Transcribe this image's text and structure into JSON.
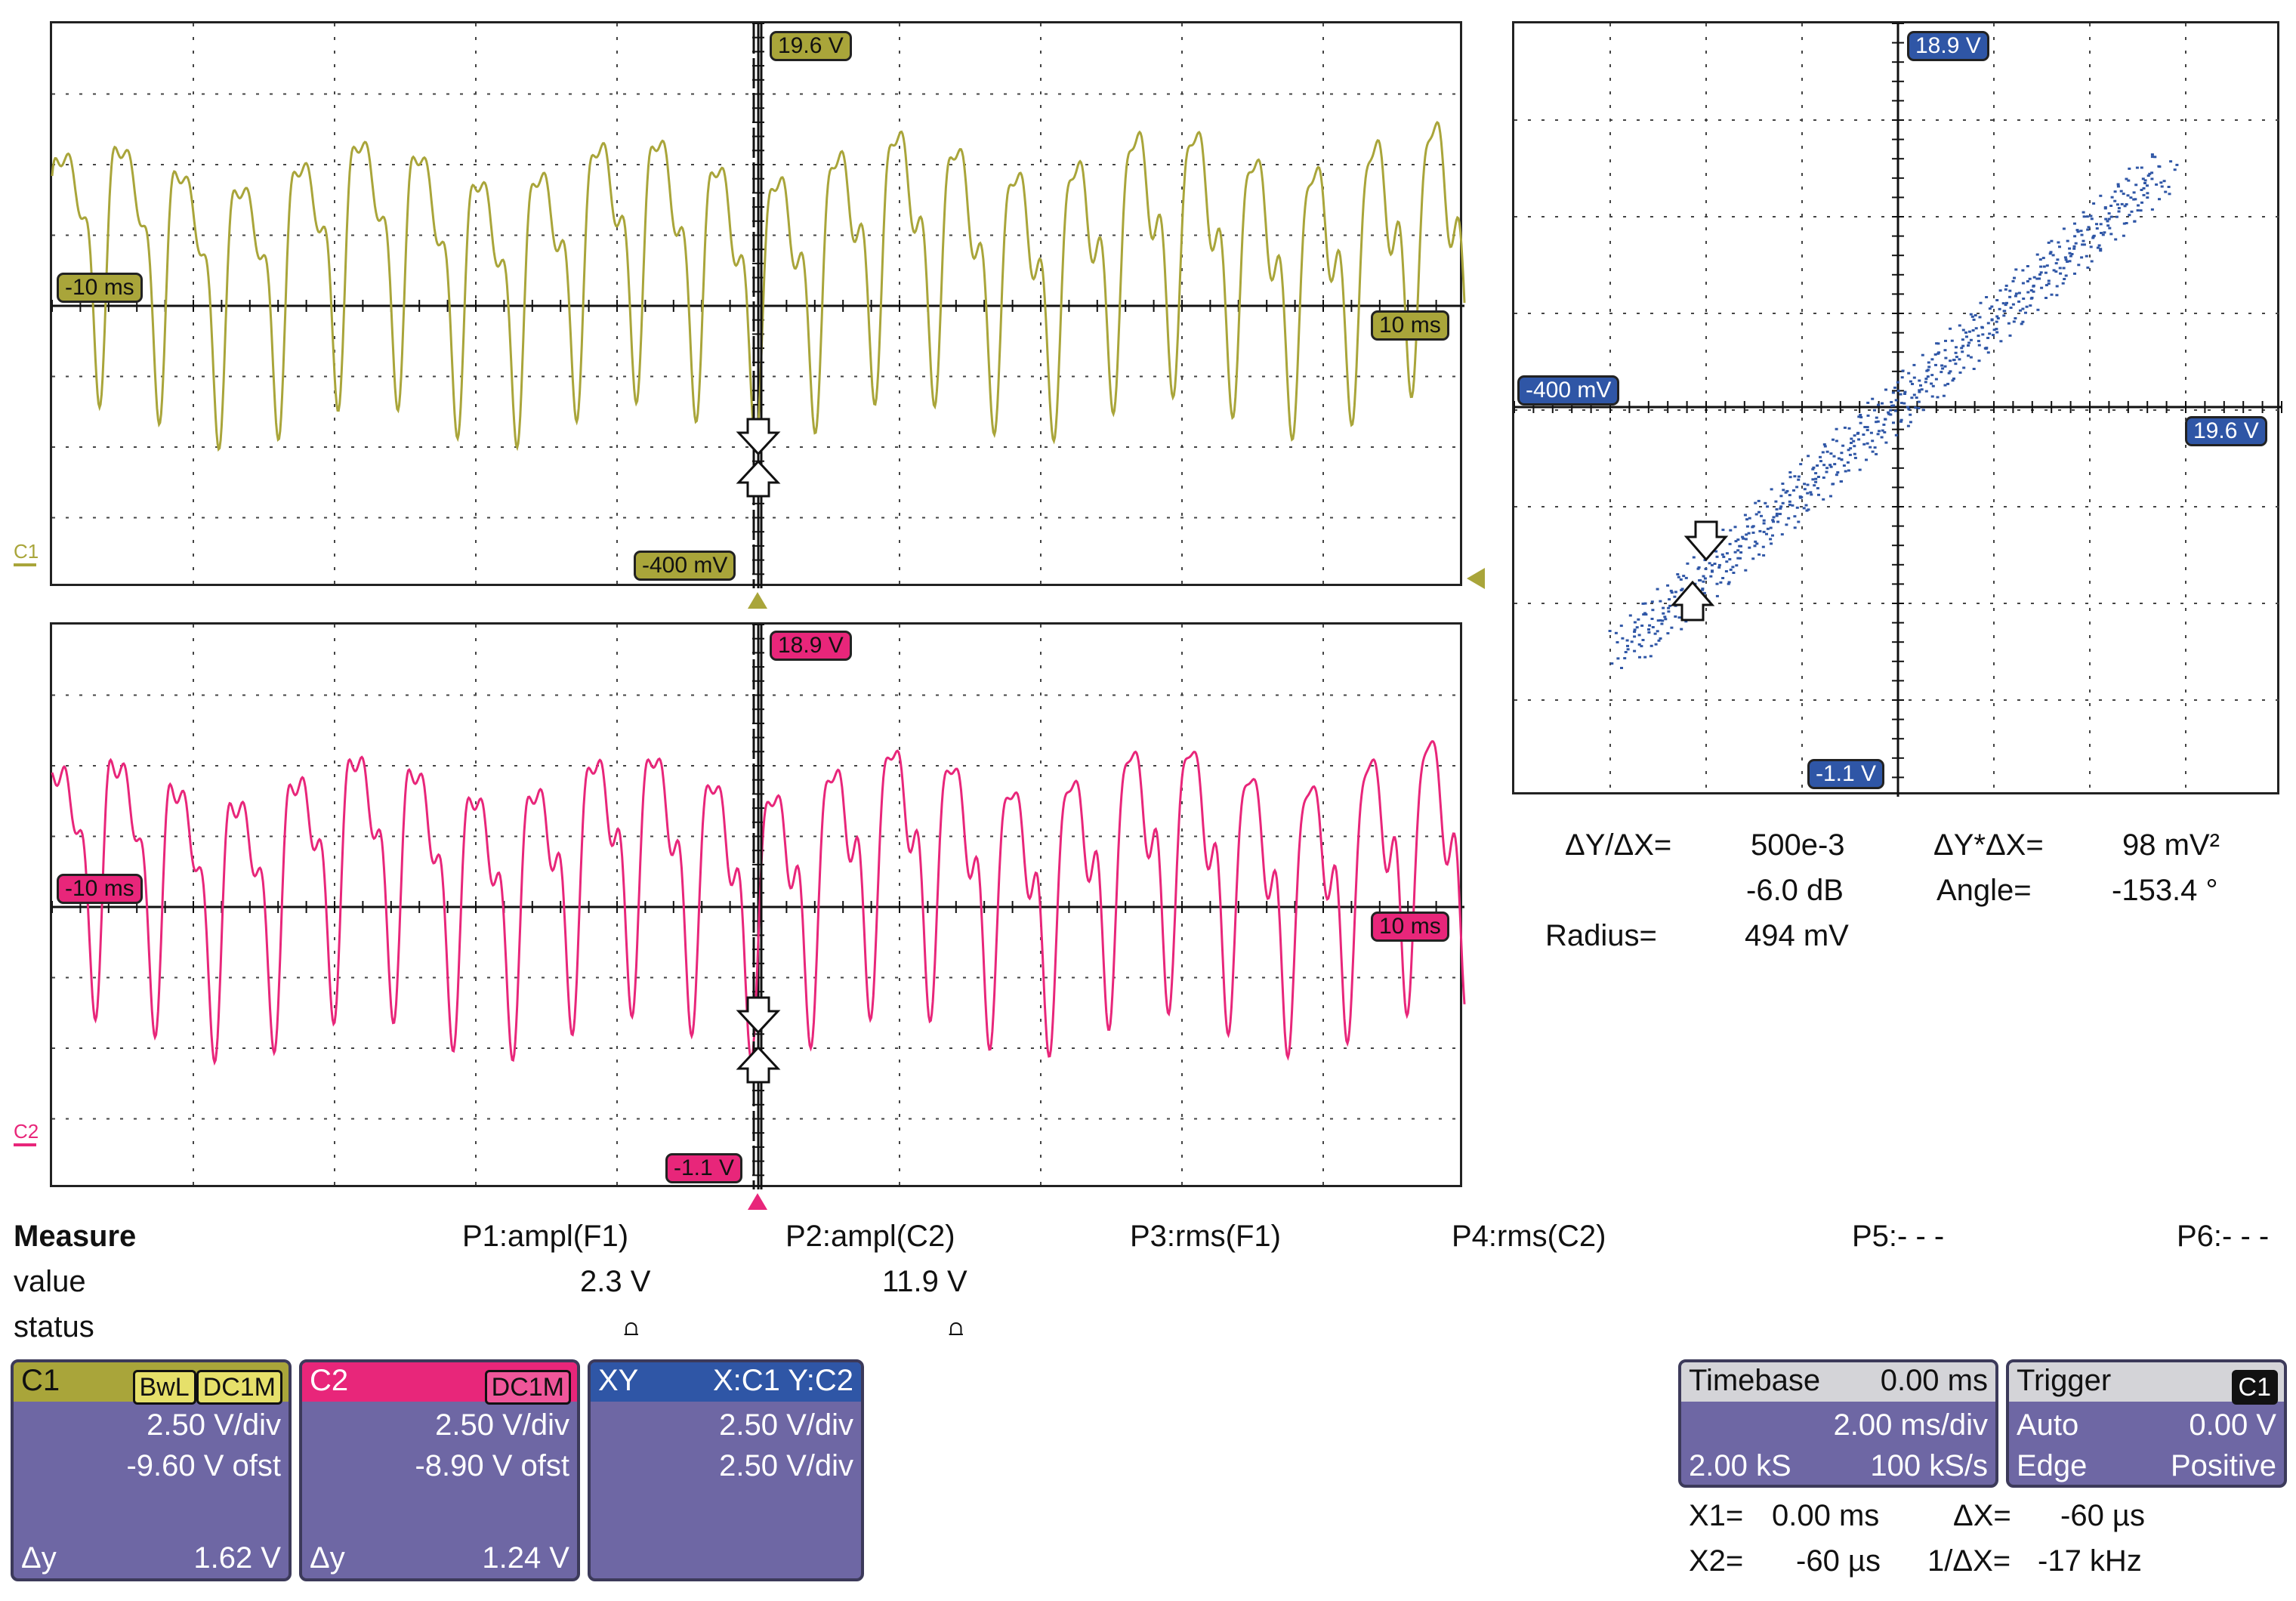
{
  "channel_panels": {
    "c1": {
      "marker": "C1",
      "color": "#a9a53a",
      "label_top": "19.6 V",
      "label_bottom": "-400 mV",
      "label_left": "-10 ms",
      "label_right": "10 ms"
    },
    "c2": {
      "marker": "C2",
      "color": "#e8267a",
      "label_top": "18.9 V",
      "label_bottom": "-1.1 V",
      "label_left": "-10 ms",
      "label_right": "10 ms"
    }
  },
  "xy_panel": {
    "color": "#2f56a6",
    "label_top": "18.9 V",
    "label_bottom": "-1.1 V",
    "label_left": "-400 mV",
    "label_right": "19.6 V"
  },
  "xy_readout": {
    "dy_dx_label": "ΔY/ΔX=",
    "dy_dx_value": "500e-3",
    "dy_times_dx_label": "ΔY*ΔX=",
    "dy_times_dx_value": "98 mV²",
    "db_value": "-6.0 dB",
    "angle_label": "Angle=",
    "angle_value": "-153.4 °",
    "radius_label": "Radius=",
    "radius_value": "494 mV"
  },
  "measure": {
    "title": "Measure",
    "value_label": "value",
    "status_label": "status",
    "params": [
      {
        "name": "P1:ampl(F1)",
        "value": "2.3 V",
        "status": "⩍"
      },
      {
        "name": "P2:ampl(C2)",
        "value": "11.9 V",
        "status": "⩍"
      },
      {
        "name": "P3:rms(F1)",
        "value": "",
        "status": ""
      },
      {
        "name": "P4:rms(C2)",
        "value": "",
        "status": ""
      },
      {
        "name": "P5:- - -",
        "value": "",
        "status": ""
      },
      {
        "name": "P6:- - -",
        "value": "",
        "status": ""
      }
    ]
  },
  "descriptors": {
    "c1": {
      "name": "C1",
      "bwl": "BwL",
      "coupling": "DC1M",
      "vdiv": "2.50 V/div",
      "offset": "-9.60 V ofst",
      "dy_label": "Δy",
      "dy_value": "1.62 V"
    },
    "c2": {
      "name": "C2",
      "coupling": "DC1M",
      "vdiv": "2.50 V/div",
      "offset": "-8.90 V ofst",
      "dy_label": "Δy",
      "dy_value": "1.24 V"
    },
    "xy": {
      "name": "XY",
      "source": "X:C1 Y:C2",
      "xdiv": "2.50 V/div",
      "ydiv": "2.50 V/div"
    }
  },
  "timebase": {
    "title": "Timebase",
    "delay": "0.00 ms",
    "tdiv": "2.00 ms/div",
    "samples": "2.00 kS",
    "rate": "100 kS/s"
  },
  "trigger": {
    "title": "Trigger",
    "source": "C1",
    "mode": "Auto",
    "level": "0.00 V",
    "type": "Edge",
    "slope": "Positive"
  },
  "cursors": {
    "x1_label": "X1=",
    "x1_value": "0.00 ms",
    "dx_label": "ΔX=",
    "dx_value": "-60 µs",
    "x2_label": "X2=",
    "x2_value": "-60 µs",
    "inv_dx_label": "1/ΔX=",
    "inv_dx_value": "-17 kHz"
  },
  "colors": {
    "c1": "#a9a53a",
    "c2": "#e8267a",
    "xy": "#2f56a6",
    "descriptor_bg": "#6e67a4"
  }
}
